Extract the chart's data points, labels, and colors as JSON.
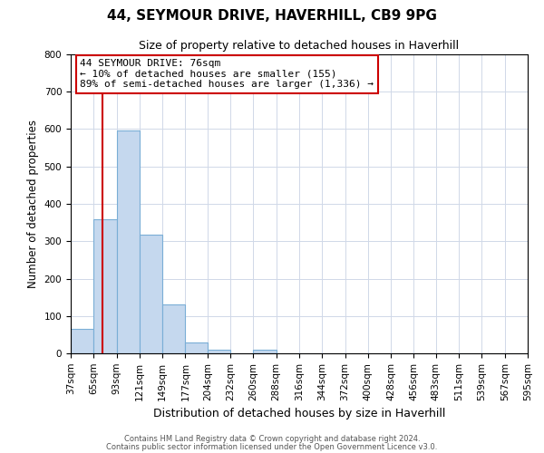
{
  "title": "44, SEYMOUR DRIVE, HAVERHILL, CB9 9PG",
  "subtitle": "Size of property relative to detached houses in Haverhill",
  "xlabel": "Distribution of detached houses by size in Haverhill",
  "ylabel": "Number of detached properties",
  "bin_edges": [
    37,
    65,
    93,
    121,
    149,
    177,
    204,
    232,
    260,
    288,
    316,
    344,
    372,
    400,
    428,
    456,
    483,
    511,
    539,
    567,
    595
  ],
  "bar_heights": [
    65,
    358,
    596,
    318,
    130,
    30,
    10,
    0,
    10,
    0,
    0,
    0,
    0,
    0,
    0,
    0,
    0,
    0,
    0,
    0
  ],
  "bar_color": "#c5d8ee",
  "bar_edge_color": "#7aaed6",
  "bar_edge_width": 0.8,
  "property_size": 76,
  "marker_line_color": "#cc0000",
  "ylim": [
    0,
    800
  ],
  "yticks": [
    0,
    100,
    200,
    300,
    400,
    500,
    600,
    700,
    800
  ],
  "annotation_text": "44 SEYMOUR DRIVE: 76sqm\n← 10% of detached houses are smaller (155)\n89% of semi-detached houses are larger (1,336) →",
  "annotation_box_color": "#ffffff",
  "annotation_box_edge_color": "#cc0000",
  "footer_line1": "Contains HM Land Registry data © Crown copyright and database right 2024.",
  "footer_line2": "Contains public sector information licensed under the Open Government Licence v3.0.",
  "background_color": "#ffffff",
  "grid_color": "#d0d8e8",
  "tick_label_fontsize": 7.5,
  "title_fontsize": 11,
  "subtitle_fontsize": 9
}
